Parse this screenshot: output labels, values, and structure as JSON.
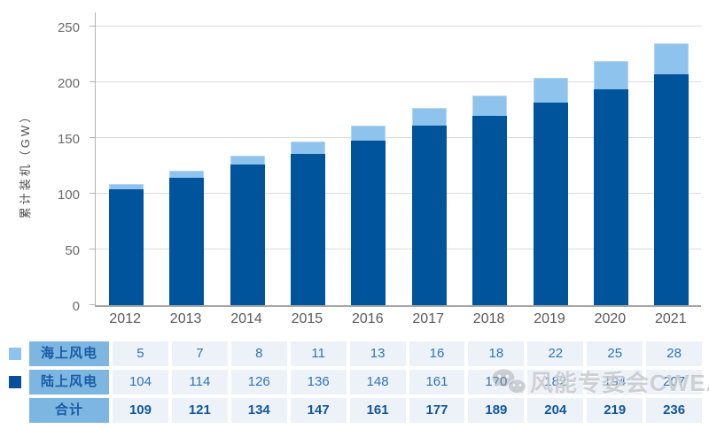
{
  "colors": {
    "offshore_bar": "#8dc3ec",
    "onshore_bar": "#00549b",
    "legend_offshore": "#8dc3ec",
    "legend_onshore": "#0a4f9c",
    "table_label_bg": "#7db6e0",
    "table_label_text": "#1a5ca6",
    "table_cell_bg": "#edf2f9",
    "table_value_text": "#2e74b8",
    "table_total_text": "#12569e",
    "gridline": "#dcdcdc"
  },
  "chart_data": {
    "type": "bar",
    "stacked": true,
    "title": "",
    "xlabel": "",
    "ylabel": "累计装机（GW）",
    "categories": [
      "2012",
      "2013",
      "2014",
      "2015",
      "2016",
      "2017",
      "2018",
      "2019",
      "2020",
      "2021"
    ],
    "series": [
      {
        "name": "海上风电",
        "color": "#8dc3ec",
        "values": [
          5,
          7,
          8,
          11,
          13,
          16,
          18,
          22,
          25,
          28
        ]
      },
      {
        "name": "陆上风电",
        "color": "#00549b",
        "values": [
          104,
          114,
          126,
          136,
          148,
          161,
          170,
          182,
          194,
          207
        ]
      }
    ],
    "totals": [
      109,
      121,
      134,
      147,
      161,
      177,
      189,
      204,
      219,
      236
    ],
    "yticks": [
      0,
      50,
      100,
      150,
      200,
      250
    ],
    "ylim": [
      0,
      264
    ],
    "grid": true,
    "legend_position": "table-below-left"
  },
  "table": {
    "rows": [
      {
        "label": "海上风电",
        "legend": "offshore",
        "is_total": false,
        "values": [
          5,
          7,
          8,
          11,
          13,
          16,
          18,
          22,
          25,
          28
        ]
      },
      {
        "label": "陆上风电",
        "legend": "onshore",
        "is_total": false,
        "values": [
          104,
          114,
          126,
          136,
          148,
          161,
          170,
          182,
          194,
          207
        ]
      },
      {
        "label": "合计",
        "legend": "none",
        "is_total": true,
        "values": [
          109,
          121,
          134,
          147,
          161,
          177,
          189,
          204,
          219,
          236
        ]
      }
    ]
  },
  "watermark": {
    "icon": "wechat-icon",
    "text": "风能专委会CWEA"
  }
}
